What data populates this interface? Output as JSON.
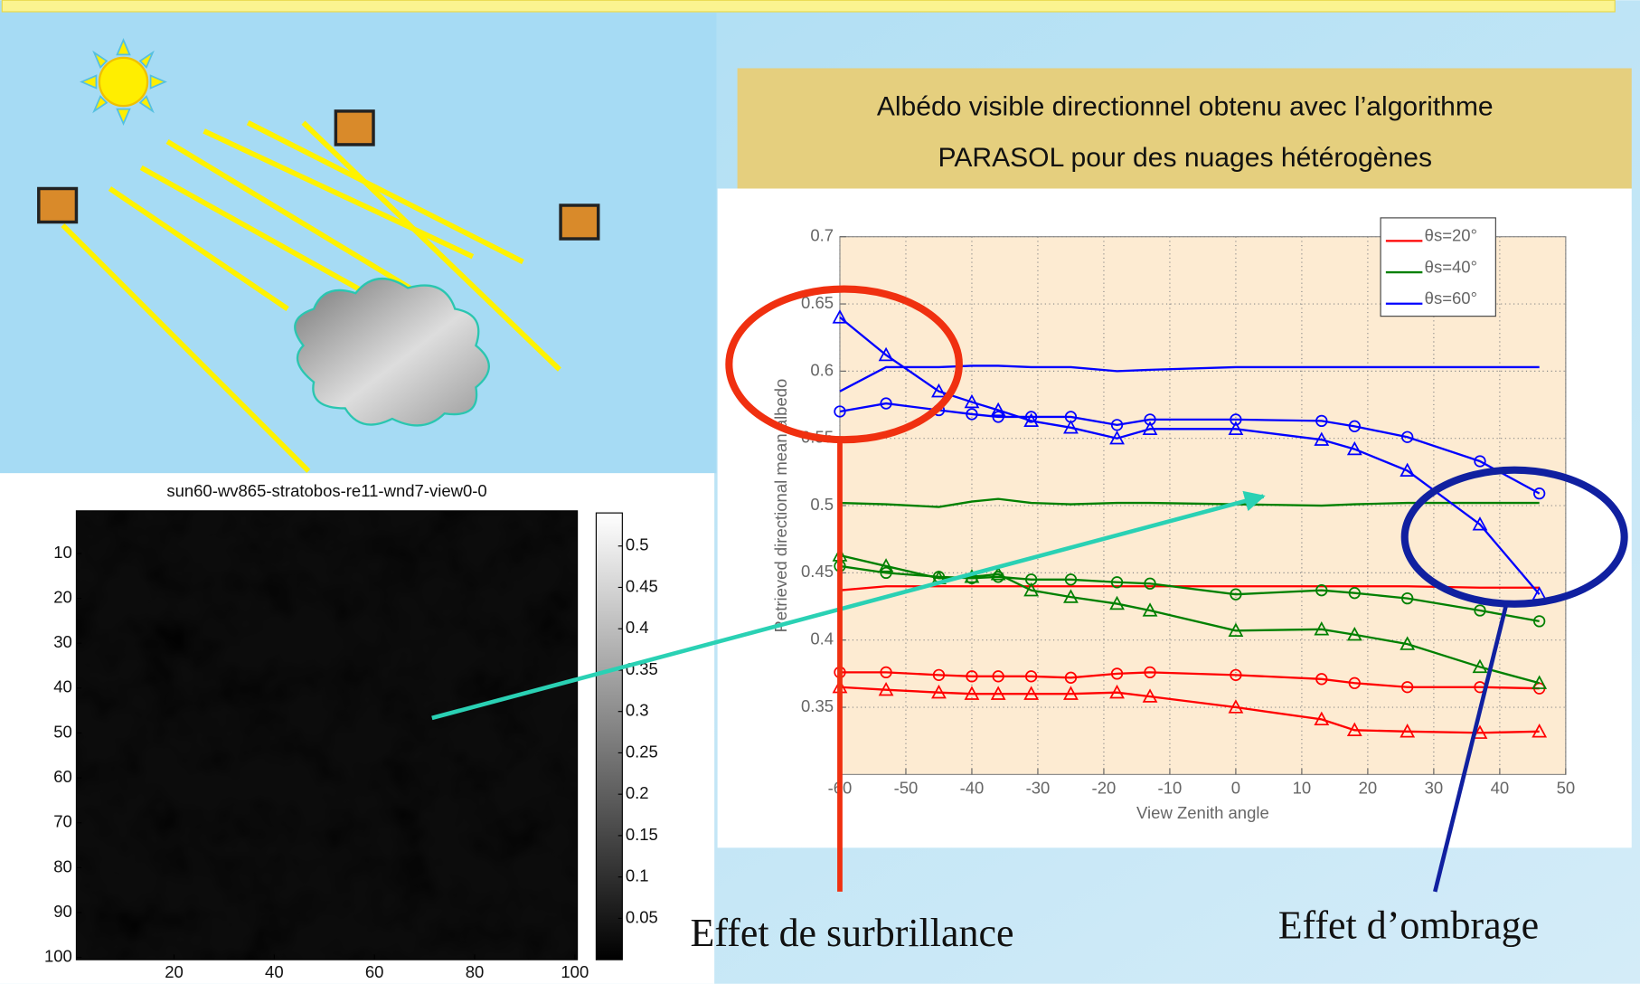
{
  "chart_data": [
    {
      "type": "line",
      "title_lines": [
        "Albédo visible directionnel obtenu avec l’algorithme",
        "PARASOL pour des nuages hétérogènes"
      ],
      "xlabel": "View Zenith angle",
      "ylabel": "Retrieved directional mean albedo",
      "xlim": [
        -60,
        50
      ],
      "xticks": [
        -60,
        -50,
        -40,
        -30,
        -20,
        -10,
        0,
        10,
        20,
        30,
        40,
        50
      ],
      "ylim": [
        0.3,
        0.7
      ],
      "yticks": [
        0.35,
        0.4,
        0.45,
        0.5,
        0.55,
        0.6,
        0.65,
        0.7
      ],
      "grid": true,
      "legend": "upper right",
      "x": [
        -60,
        -53,
        -45,
        -40,
        -36,
        -31,
        -25,
        -18,
        -13,
        0,
        13,
        18,
        26,
        37,
        46
      ],
      "series": [
        {
          "name": "θs=20°",
          "color": "#ff0000",
          "lines": [
            {
              "marker": "none",
              "values": [
                0.437,
                0.44,
                0.44,
                0.44,
                0.44,
                0.44,
                0.44,
                0.44,
                0.44,
                0.44,
                0.44,
                0.44,
                0.44,
                0.439,
                0.439
              ]
            },
            {
              "marker": "circle",
              "values": [
                0.376,
                0.376,
                0.374,
                0.373,
                0.373,
                0.373,
                0.372,
                0.375,
                0.376,
                0.374,
                0.371,
                0.368,
                0.365,
                0.365,
                0.364
              ]
            },
            {
              "marker": "triangle",
              "values": [
                0.365,
                0.363,
                0.361,
                0.36,
                0.36,
                0.36,
                0.36,
                0.361,
                0.358,
                0.35,
                0.341,
                0.333,
                0.332,
                0.331,
                0.332
              ]
            }
          ]
        },
        {
          "name": "θs=40°",
          "color": "#008000",
          "lines": [
            {
              "marker": "none",
              "values": [
                0.502,
                0.501,
                0.499,
                0.503,
                0.505,
                0.502,
                0.501,
                0.502,
                0.502,
                0.501,
                0.5,
                0.501,
                0.502,
                0.502,
                0.502
              ]
            },
            {
              "marker": "circle",
              "values": [
                0.455,
                0.45,
                0.447,
                0.446,
                0.447,
                0.445,
                0.445,
                0.443,
                0.442,
                0.434,
                0.437,
                0.435,
                0.431,
                0.422,
                0.414
              ]
            },
            {
              "marker": "triangle",
              "values": [
                0.463,
                0.455,
                0.446,
                0.447,
                0.449,
                0.437,
                0.432,
                0.427,
                0.422,
                0.407,
                0.408,
                0.404,
                0.397,
                0.38,
                0.368
              ]
            }
          ]
        },
        {
          "name": "θs=60°",
          "color": "#0000ff",
          "lines": [
            {
              "marker": "none",
              "values": [
                0.585,
                0.603,
                0.603,
                0.604,
                0.604,
                0.603,
                0.603,
                0.6,
                0.601,
                0.603,
                0.603,
                0.603,
                0.603,
                0.603,
                0.603
              ]
            },
            {
              "marker": "circle",
              "values": [
                0.57,
                0.576,
                0.571,
                0.568,
                0.566,
                0.566,
                0.566,
                0.56,
                0.564,
                0.564,
                0.563,
                0.559,
                0.551,
                0.533,
                0.509
              ]
            },
            {
              "marker": "triangle",
              "values": [
                0.64,
                0.612,
                0.585,
                0.577,
                0.571,
                0.563,
                0.558,
                0.55,
                0.557,
                0.557,
                0.549,
                0.542,
                0.526,
                0.486,
                0.434
              ]
            }
          ]
        }
      ],
      "annotations": [
        "Effet de surbrillance",
        "Effet d’ombrage"
      ]
    },
    {
      "type": "image",
      "title": "sun60-wv865-stratobos-re11-wnd7-view0-0",
      "colormap": "gray",
      "xlim": [
        0.5,
        100.5
      ],
      "xticks": [
        20,
        40,
        60,
        80,
        100
      ],
      "ylim": [
        100.5,
        0.5
      ],
      "yticks": [
        10,
        20,
        30,
        40,
        50,
        60,
        70,
        80,
        90,
        100
      ],
      "clim": [
        0,
        0.54
      ],
      "cticks": [
        0.05,
        0.1,
        0.15,
        0.2,
        0.25,
        0.3,
        0.35,
        0.4,
        0.45,
        0.5
      ]
    }
  ]
}
